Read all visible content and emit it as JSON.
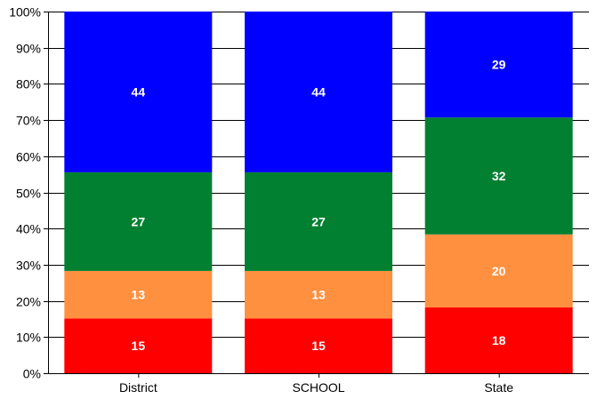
{
  "chart_data": {
    "type": "bar",
    "stacked": true,
    "percent": true,
    "categories": [
      "District",
      "SCHOOL",
      "State"
    ],
    "series": [
      {
        "color": "#ff0000",
        "values": [
          15,
          15,
          18
        ]
      },
      {
        "color": "#ff9040",
        "values": [
          13,
          13,
          20
        ]
      },
      {
        "color": "#008030",
        "values": [
          27,
          27,
          32
        ]
      },
      {
        "color": "#0000ff",
        "values": [
          44,
          44,
          29
        ]
      }
    ],
    "ylim": [
      0,
      100
    ],
    "yticks": [
      "0%",
      "10%",
      "20%",
      "30%",
      "40%",
      "50%",
      "60%",
      "70%",
      "80%",
      "90%",
      "100%"
    ],
    "grid": true,
    "legend": "none"
  }
}
